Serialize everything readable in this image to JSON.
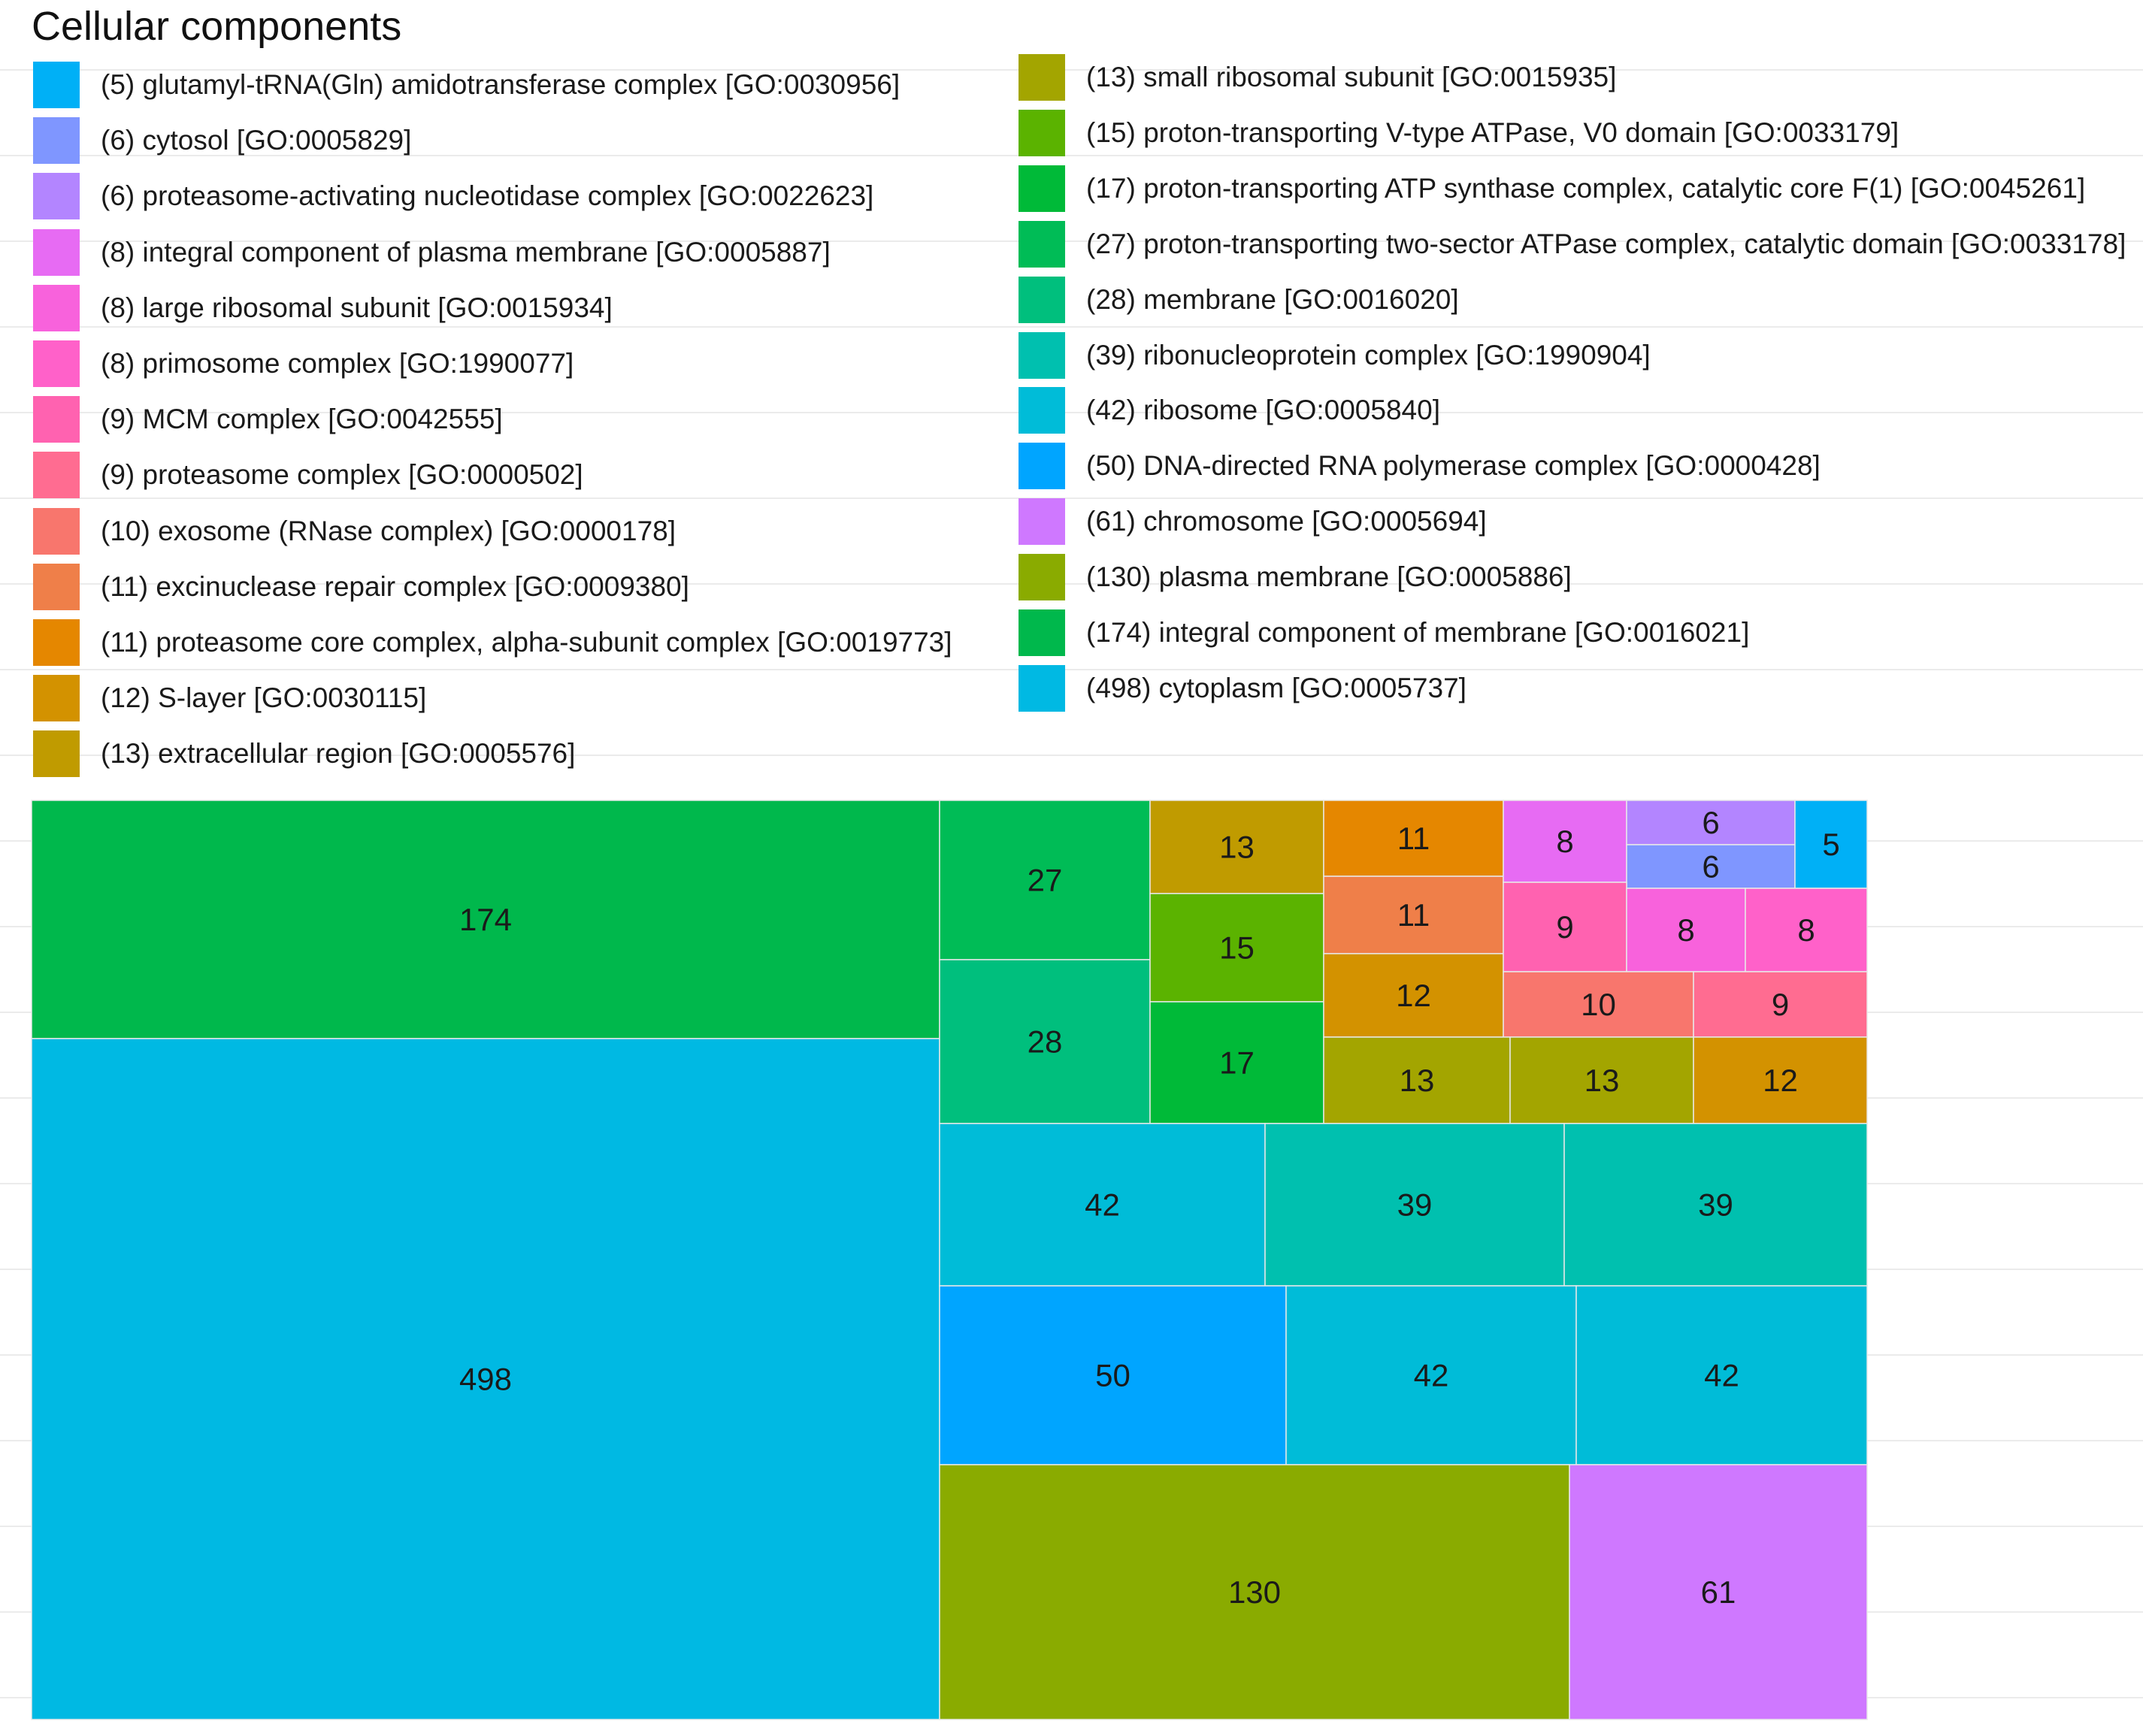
{
  "chart_data": {
    "type": "treemap",
    "title": "Cellular components",
    "legend": [
      {
        "label": "(5) glutamyl-tRNA(Gln) amidotransferase complex [GO:0030956]",
        "color": "#00b0f6"
      },
      {
        "label": "(6) cytosol [GO:0005829]",
        "color": "#7f96ff"
      },
      {
        "label": "(6) proteasome-activating nucleotidase complex [GO:0022623]",
        "color": "#b385ff"
      },
      {
        "label": "(8) integral component of plasma membrane [GO:0005887]",
        "color": "#e76bf3"
      },
      {
        "label": "(8) large ribosomal subunit [GO:0015934]",
        "color": "#f862dc"
      },
      {
        "label": "(8) primosome complex [GO:1990077]",
        "color": "#ff61c9"
      },
      {
        "label": "(9) MCM complex [GO:0042555]",
        "color": "#ff62b0"
      },
      {
        "label": "(9) proteasome complex [GO:0000502]",
        "color": "#ff6c91"
      },
      {
        "label": "(10) exosome (RNase complex) [GO:0000178]",
        "color": "#f8766d"
      },
      {
        "label": "(11) excinuclease repair complex [GO:0009380]",
        "color": "#ef7f49"
      },
      {
        "label": "(11) proteasome core complex, alpha-subunit complex [GO:0019773]",
        "color": "#e58700"
      },
      {
        "label": "(12) S-layer [GO:0030115]",
        "color": "#d39200"
      },
      {
        "label": "(13) extracellular region [GO:0005576]",
        "color": "#c09b00"
      },
      {
        "label": "(13) small ribosomal subunit [GO:0015935]",
        "color": "#a3a500"
      },
      {
        "label": "(15) proton-transporting V-type ATPase, V0 domain [GO:0033179]",
        "color": "#5bb300"
      },
      {
        "label": "(17) proton-transporting ATP synthase complex, catalytic core F(1) [GO:0045261]",
        "color": "#00ba38"
      },
      {
        "label": "(27) proton-transporting two-sector ATPase complex, catalytic domain [GO:0033178]",
        "color": "#00bc56"
      },
      {
        "label": "(28) membrane [GO:0016020]",
        "color": "#00bf7d"
      },
      {
        "label": "(39) ribonucleoprotein complex [GO:1990904]",
        "color": "#00c0af"
      },
      {
        "label": "(42) ribosome [GO:0005840]",
        "color": "#00bcd8"
      },
      {
        "label": "(50) DNA-directed RNA polymerase complex [GO:0000428]",
        "color": "#00a5ff"
      },
      {
        "label": "(61) chromosome [GO:0005694]",
        "color": "#cf78ff"
      },
      {
        "label": "(130) plasma membrane [GO:0005886]",
        "color": "#8aab00"
      },
      {
        "label": "(174) integral component of membrane [GO:0016021]",
        "color": "#00b84c"
      },
      {
        "label": "(498) cytoplasm [GO:0005737]",
        "color": "#00b9e3"
      }
    ],
    "tiles": [
      {
        "value": 174,
        "label": "174",
        "color": "#00b84c"
      },
      {
        "value": 498,
        "label": "498",
        "color": "#00b9e3"
      },
      {
        "value": 27,
        "label": "27",
        "color": "#00bc56"
      },
      {
        "value": 28,
        "label": "28",
        "color": "#00bf7d"
      },
      {
        "value": 13,
        "label": "13",
        "color": "#c09b00"
      },
      {
        "value": 15,
        "label": "15",
        "color": "#5bb300"
      },
      {
        "value": 17,
        "label": "17",
        "color": "#00ba38"
      },
      {
        "value": 11,
        "label": "11",
        "color": "#e58700"
      },
      {
        "value": 11,
        "label": "11",
        "color": "#ef7f49"
      },
      {
        "value": 12,
        "label": "12",
        "color": "#d39200"
      },
      {
        "value": 8,
        "label": "8",
        "color": "#e76bf3"
      },
      {
        "value": 6,
        "label": "6",
        "color": "#b385ff"
      },
      {
        "value": 6,
        "label": "6",
        "color": "#7f96ff"
      },
      {
        "value": 5,
        "label": "5",
        "color": "#00b0f6"
      },
      {
        "value": 9,
        "label": "9",
        "color": "#ff62b0"
      },
      {
        "value": 8,
        "label": "8",
        "color": "#f862dc"
      },
      {
        "value": 8,
        "label": "8",
        "color": "#ff61c9"
      },
      {
        "value": 10,
        "label": "10",
        "color": "#f8766d"
      },
      {
        "value": 9,
        "label": "9",
        "color": "#ff6c91"
      },
      {
        "value": 13,
        "label": "13",
        "color": "#a3a500"
      },
      {
        "value": 13,
        "label": "13",
        "color": "#a3a500"
      },
      {
        "value": 12,
        "label": "12",
        "color": "#d39200"
      },
      {
        "value": 42,
        "label": "42",
        "color": "#00bcd8"
      },
      {
        "value": 39,
        "label": "39",
        "color": "#00c0af"
      },
      {
        "value": 39,
        "label": "39",
        "color": "#00c0af"
      },
      {
        "value": 50,
        "label": "50",
        "color": "#00a5ff"
      },
      {
        "value": 42,
        "label": "42",
        "color": "#00bcd8"
      },
      {
        "value": 42,
        "label": "42",
        "color": "#00bcd8"
      },
      {
        "value": 130,
        "label": "130",
        "color": "#8aab00"
      },
      {
        "value": 61,
        "label": "61",
        "color": "#cf78ff"
      }
    ]
  }
}
